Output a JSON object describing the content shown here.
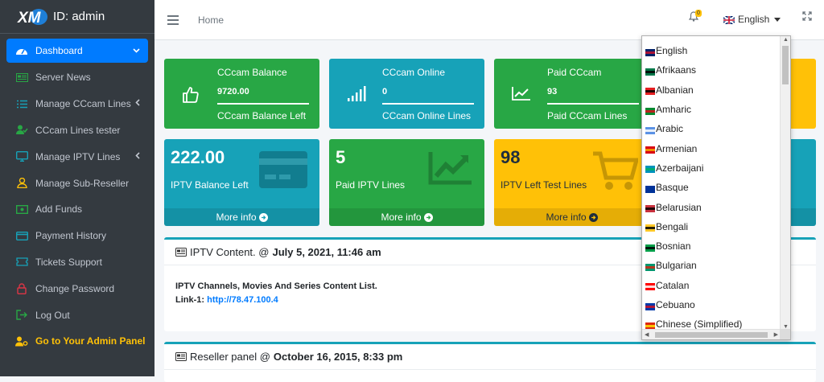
{
  "brand": {
    "text": "ID: admin"
  },
  "sidebar": {
    "items": [
      {
        "label": "Dashboard",
        "icon": "tachometer-icon",
        "name": "sidebar-item-dashboard",
        "active": true,
        "arrow": "chevron-down"
      },
      {
        "label": "Server News",
        "icon": "newspaper-icon",
        "name": "sidebar-item-server-news"
      },
      {
        "label": "Manage CCcam Lines",
        "icon": "list-icon",
        "name": "sidebar-item-manage-cccam-lines",
        "arrow": "chevron-left"
      },
      {
        "label": "CCcam Lines tester",
        "icon": "user-check-icon",
        "name": "sidebar-item-cccam-lines-tester"
      },
      {
        "label": "Manage IPTV Lines",
        "icon": "monitor-icon",
        "name": "sidebar-item-manage-iptv-lines",
        "arrow": "chevron-left"
      },
      {
        "label": "Manage Sub-Reseller",
        "icon": "user-icon",
        "name": "sidebar-item-manage-sub-reseller"
      },
      {
        "label": "Add Funds",
        "icon": "money-icon",
        "name": "sidebar-item-add-funds"
      },
      {
        "label": "Payment History",
        "icon": "credit-card-icon",
        "name": "sidebar-item-payment-history"
      },
      {
        "label": "Tickets Support",
        "icon": "ticket-icon",
        "name": "sidebar-item-tickets-support"
      },
      {
        "label": "Change Password",
        "icon": "lock-icon",
        "name": "sidebar-item-change-password"
      },
      {
        "label": "Log Out",
        "icon": "sign-out-icon",
        "name": "sidebar-item-log-out"
      },
      {
        "label": "Go to Your Admin Panel",
        "icon": "user-cog-icon",
        "name": "sidebar-item-admin-panel",
        "highlight": true
      }
    ]
  },
  "topbar": {
    "home": "Home",
    "notifications": "0",
    "language": "English"
  },
  "cards": [
    {
      "title": "CCcam Balance",
      "value": "9720.00",
      "footer": "CCcam Balance Left",
      "color": "#28a745",
      "icon": "thumbs-up-icon"
    },
    {
      "title": "CCcam Online",
      "value": "0",
      "footer": "CCcam Online Lines",
      "color": "#17a2b8",
      "icon": "signal-icon"
    },
    {
      "title": "Paid CCcam",
      "value": "93",
      "footer": "Paid CCcam Lines",
      "color": "#28a745",
      "icon": "chart-line-icon"
    }
  ],
  "stat_boxes": [
    {
      "value": "222.00",
      "label": "IPTV Balance Left",
      "more": "More info",
      "color": "#17a2b8",
      "icon": "credit-card-icon"
    },
    {
      "value": "5",
      "label": "Paid IPTV Lines",
      "more": "More info",
      "color": "#28a745",
      "icon": "chart-area-icon"
    },
    {
      "value": "98",
      "label": "IPTV Left Test Lines",
      "more": "More info",
      "color": "#ffc107",
      "icon": "shopping-cart-icon"
    }
  ],
  "panels": [
    {
      "title": "IPTV Content. @",
      "date": "July 5, 2021, 11:46 am",
      "body_line1": "IPTV Channels, Movies And Series Content List.",
      "link_label": "Link-1:",
      "link": "http://78.47.100.4"
    },
    {
      "title": "Reseller panel @",
      "date": "October 16, 2015, 8:33 pm"
    }
  ],
  "languages": [
    {
      "label": "English",
      "flag": [
        "#012169",
        "#C8102E"
      ]
    },
    {
      "label": "Afrikaans",
      "flag": [
        "#007749",
        "#000000"
      ]
    },
    {
      "label": "Albanian",
      "flag": [
        "#E41E20",
        "#000000"
      ]
    },
    {
      "label": "Amharic",
      "flag": [
        "#078930",
        "#DA121A"
      ]
    },
    {
      "label": "Arabic",
      "flag": [
        "#5B92E5",
        "#ffffff"
      ]
    },
    {
      "label": "Armenian",
      "flag": [
        "#D90012",
        "#F2A800"
      ]
    },
    {
      "label": "Azerbaijani",
      "flag": [
        "#0092BC",
        "#00AF66"
      ]
    },
    {
      "label": "Basque",
      "flag": [
        "#003399",
        "#003399"
      ]
    },
    {
      "label": "Belarusian",
      "flag": [
        "#C8313E",
        "#000000"
      ]
    },
    {
      "label": "Bengali",
      "flag": [
        "#FFC726",
        "#000000"
      ]
    },
    {
      "label": "Bosnian",
      "flag": [
        "#009E49",
        "#000000"
      ]
    },
    {
      "label": "Bulgarian",
      "flag": [
        "#00966E",
        "#D62612"
      ]
    },
    {
      "label": "Catalan",
      "flag": [
        "#FF0000",
        "#ffffff"
      ]
    },
    {
      "label": "Cebuano",
      "flag": [
        "#0038A8",
        "#CE1126"
      ]
    },
    {
      "label": "Chinese (Simplified)",
      "flag": [
        "#DE2910",
        "#FFDE00"
      ]
    }
  ]
}
